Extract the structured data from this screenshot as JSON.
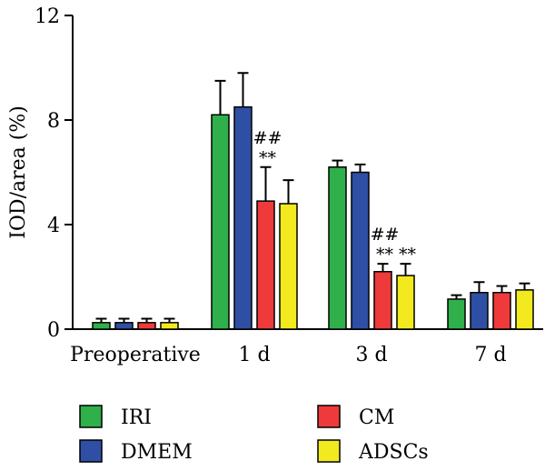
{
  "chart_data": {
    "type": "bar",
    "ylabel": "IOD/area (%)",
    "ylim": [
      0,
      12
    ],
    "yticks": [
      0,
      4,
      8,
      12
    ],
    "categories": [
      "Preoperative",
      "1 d",
      "3 d",
      "7 d"
    ],
    "series": [
      {
        "name": "IRI",
        "color": "#2fb04a",
        "values": [
          0.25,
          8.2,
          6.2,
          1.15
        ],
        "errors": [
          0.15,
          1.3,
          0.25,
          0.15
        ]
      },
      {
        "name": "DMEM",
        "color": "#2e4fa3",
        "values": [
          0.25,
          8.5,
          6.0,
          1.4
        ],
        "errors": [
          0.15,
          1.3,
          0.3,
          0.4
        ]
      },
      {
        "name": "CM",
        "color": "#ee3a3a",
        "values": [
          0.25,
          4.9,
          2.2,
          1.4
        ],
        "errors": [
          0.15,
          1.3,
          0.3,
          0.25
        ]
      },
      {
        "name": "ADSCs",
        "color": "#f2ea1e",
        "values": [
          0.25,
          4.8,
          2.05,
          1.5
        ],
        "errors": [
          0.15,
          0.9,
          0.45,
          0.25
        ]
      }
    ],
    "annotations": [
      {
        "category": "1 d",
        "series": "CM",
        "text": "##"
      },
      {
        "category": "1 d",
        "series": "CM",
        "text": "**"
      },
      {
        "category": "3 d",
        "series": "CM",
        "text": "##"
      },
      {
        "category": "3 d",
        "series": "CM",
        "text": "**"
      },
      {
        "category": "3 d",
        "series": "ADSCs",
        "text": "**"
      }
    ],
    "legend": {
      "placement": "bottom",
      "entries": [
        "IRI",
        "CM",
        "DMEM",
        "ADSCs"
      ]
    }
  }
}
